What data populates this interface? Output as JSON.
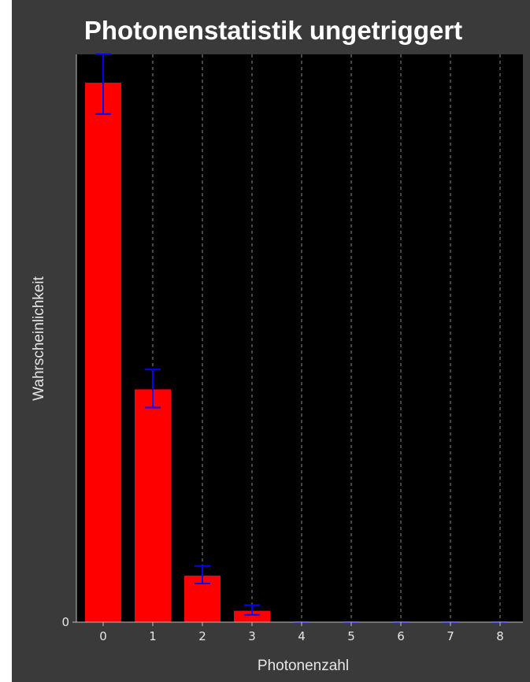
{
  "chart_data": {
    "type": "bar",
    "title": "Photonenstatistik ungetriggert",
    "xlabel": "Photonenzahl",
    "ylabel": "Wahrscheinlichkeit",
    "categories": [
      "0",
      "1",
      "2",
      "3",
      "4",
      "5",
      "6",
      "7",
      "8"
    ],
    "values": [
      0.95,
      0.41,
      0.082,
      0.02,
      0,
      0,
      0,
      0,
      0
    ],
    "error_low": [
      0.055,
      0.032,
      0.014,
      0.007,
      0,
      0,
      0,
      0,
      0
    ],
    "error_high": [
      0.05,
      0.035,
      0.017,
      0.01,
      0,
      0,
      0,
      0,
      0
    ],
    "ylim": [
      0,
      1.0
    ],
    "y_ticks": [
      "0"
    ],
    "vertical_grid": true,
    "horizontal_grid": false,
    "colors": {
      "panel_bg": "#3a3a3a",
      "plot_bg": "#000000",
      "bar": "#ff0000",
      "error_bar": "#0000ff",
      "grid": "#8a8a8a",
      "text": "#ffffff"
    }
  }
}
